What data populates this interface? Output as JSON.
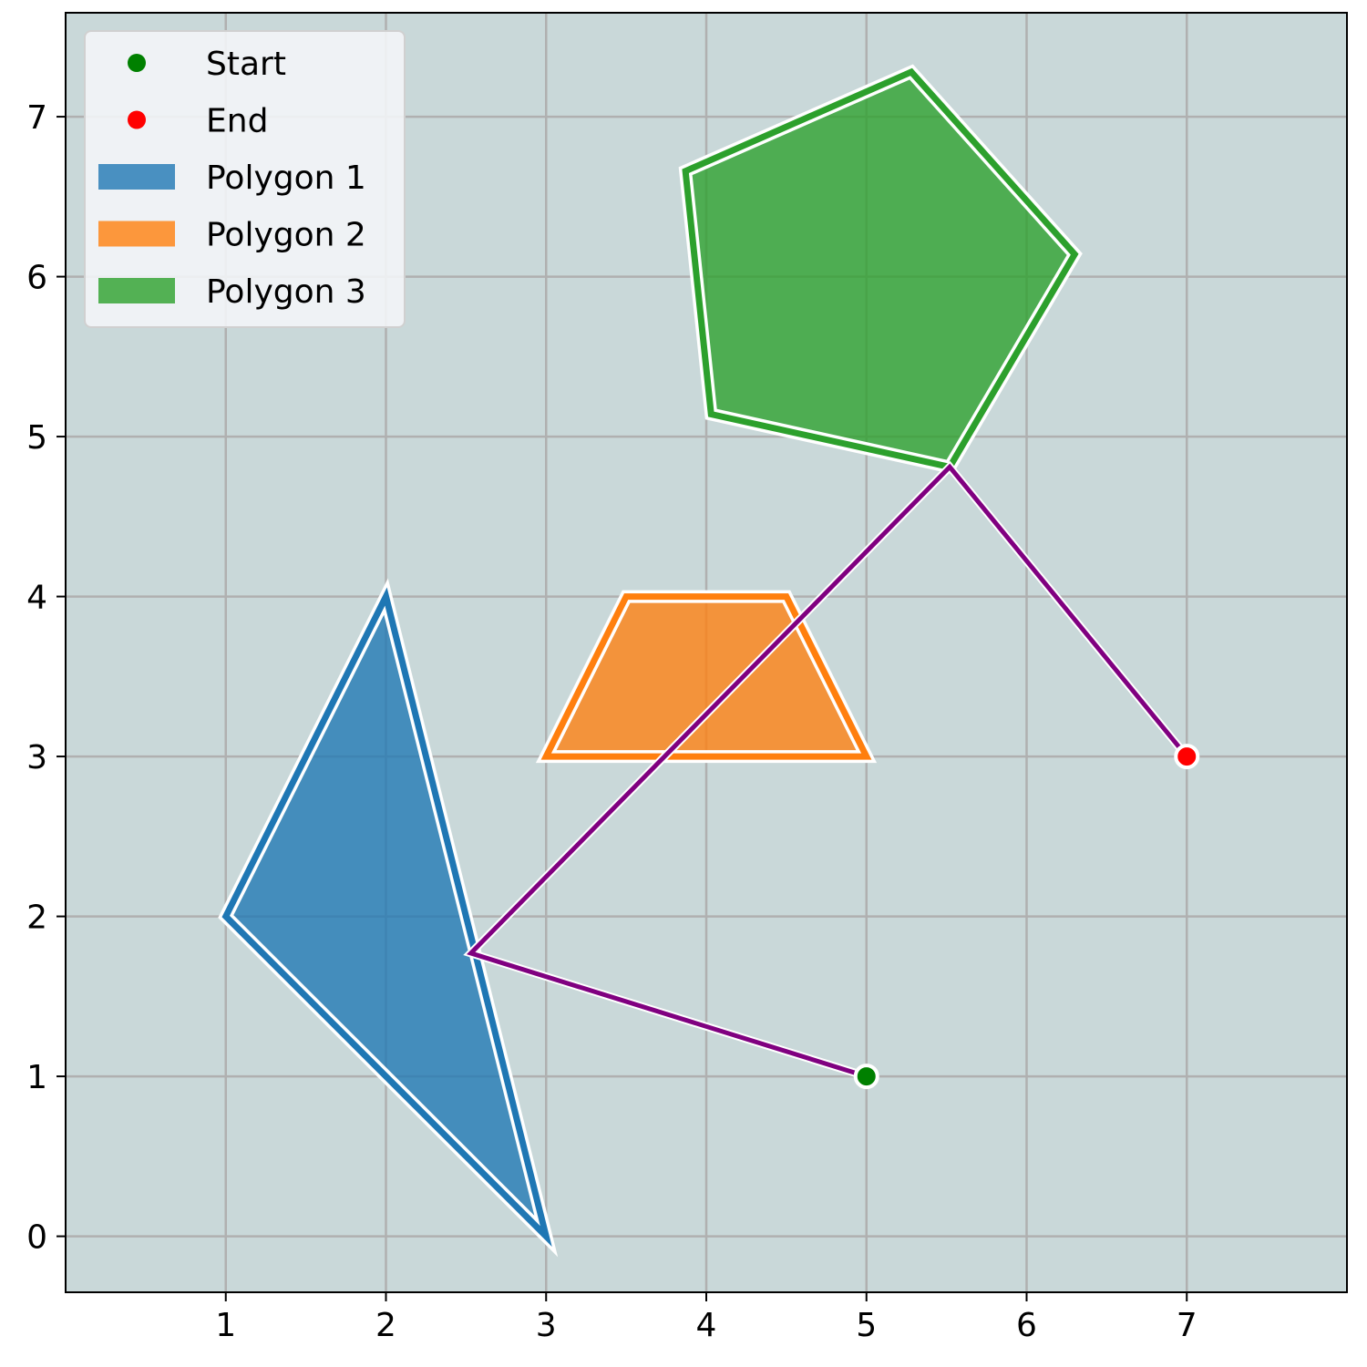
{
  "chart_data": {
    "type": "scatter",
    "title": "",
    "xlabel": "",
    "ylabel": "",
    "xlim": [
      0,
      8
    ],
    "ylim": [
      -0.35,
      7.65
    ],
    "xticks": [
      1,
      2,
      3,
      4,
      5,
      6,
      7
    ],
    "yticks": [
      0,
      1,
      2,
      3,
      4,
      5,
      6,
      7
    ],
    "xtick_labels": [
      "1",
      "2",
      "3",
      "4",
      "5",
      "6",
      "7"
    ],
    "ytick_labels": [
      "0",
      "1",
      "2",
      "3",
      "4",
      "5",
      "6",
      "7"
    ],
    "grid": true,
    "legend_position": "top-left",
    "legend": [
      {
        "label": "Start",
        "kind": "marker",
        "color": "#008000"
      },
      {
        "label": "End",
        "kind": "marker",
        "color": "#ff0000"
      },
      {
        "label": "Polygon 1",
        "kind": "patch",
        "color": "#1f77b4"
      },
      {
        "label": "Polygon 2",
        "kind": "patch",
        "color": "#ff7f0e"
      },
      {
        "label": "Polygon 3",
        "kind": "patch",
        "color": "#2ca02c"
      }
    ],
    "polygons": [
      {
        "name": "Polygon 1",
        "color": "#1f77b4",
        "vertices": [
          [
            1,
            2
          ],
          [
            2,
            4
          ],
          [
            3,
            0
          ]
        ]
      },
      {
        "name": "Polygon 2",
        "color": "#ff7f0e",
        "vertices": [
          [
            3,
            3
          ],
          [
            3.5,
            4
          ],
          [
            4.5,
            4
          ],
          [
            5,
            3
          ]
        ]
      },
      {
        "name": "Polygon 3",
        "color": "#2ca02c",
        "vertices": [
          [
            5.52,
            4.81
          ],
          [
            6.3,
            6.14
          ],
          [
            5.28,
            7.28
          ],
          [
            3.87,
            6.66
          ],
          [
            4.03,
            5.14
          ]
        ]
      }
    ],
    "path": {
      "color": "#800080",
      "points": [
        [
          5,
          1
        ],
        [
          2.53,
          1.77
        ],
        [
          5.52,
          4.81
        ],
        [
          7,
          3
        ]
      ]
    },
    "start": {
      "label": "Start",
      "x": 5,
      "y": 1,
      "color": "#008000"
    },
    "end": {
      "label": "End",
      "x": 7,
      "y": 3,
      "color": "#ff0000"
    },
    "colors": {
      "plot_background": "#c9d8d9",
      "grid": "#b0b0b0",
      "legend_background": "#f3f5f7"
    }
  }
}
